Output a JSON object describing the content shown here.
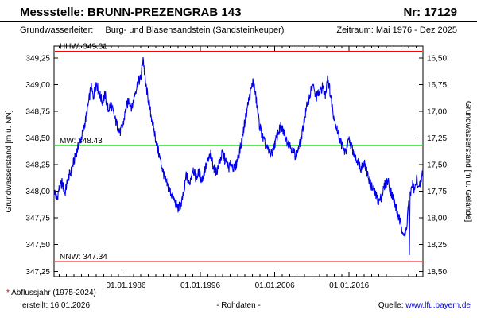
{
  "header": {
    "station_label": "Messstelle:",
    "station_name": "BRUNN-PREZENGRAB 143",
    "number": "Nr: 17129",
    "aquifer_label": "Grundwasserleiter:",
    "aquifer_value": "Burg- und Blasensandstein (Sandsteinkeuper)",
    "period": "Zeitraum: Mai 1976 - Dez 2025"
  },
  "footer": {
    "footnote_marker": "*",
    "footnote": "Abflussjahr (1975-2024)",
    "created": "erstellt: 16.01.2026",
    "center": "- Rohdaten -",
    "source_label": "Quelle:",
    "source_link": "www.lfu.bayern.de"
  },
  "colors": {
    "link": "#0000cc",
    "footnote_marker": "#cc0000",
    "axis": "#000000"
  },
  "chart_data": {
    "type": "line",
    "title": "",
    "ylabel_left": "Grundwasserstand [m ü. NN]",
    "ylabel_right": "Grundwasserstand [m u. Gelände]",
    "x_range": [
      1976.33,
      2025.92
    ],
    "ylim_left": [
      347.2,
      349.36
    ],
    "grid": false,
    "legend": "none",
    "y_ticks": [
      {
        "value": 349.25,
        "left": "349,25",
        "right": "16,50"
      },
      {
        "value": 349.0,
        "left": "349,00",
        "right": "16,75"
      },
      {
        "value": 348.75,
        "left": "348,75",
        "right": "17,00"
      },
      {
        "value": 348.5,
        "left": "348,50",
        "right": "17,25"
      },
      {
        "value": 348.25,
        "left": "348,25",
        "right": "17,50"
      },
      {
        "value": 348.0,
        "left": "348,00",
        "right": "17,75"
      },
      {
        "value": 347.75,
        "left": "347,75",
        "right": "18,00"
      },
      {
        "value": 347.5,
        "left": "347,50",
        "right": "18,25"
      },
      {
        "value": 347.25,
        "left": "347,25",
        "right": "18,50"
      }
    ],
    "x_ticks": [
      {
        "year": 1986,
        "label": "01.01.1986"
      },
      {
        "year": 1996,
        "label": "01.01.1996"
      },
      {
        "year": 2006,
        "label": "01.01.2006"
      },
      {
        "year": 2016,
        "label": "01.01.2016"
      }
    ],
    "reference_lines": [
      {
        "name": "HHW",
        "label": "HHW: 349.31",
        "value": 349.31,
        "color": "#ff0000"
      },
      {
        "name": "MW",
        "label": "MW: 348.43",
        "value": 348.43,
        "color": "#009900"
      },
      {
        "name": "NNW",
        "label": "NNW: 347.34",
        "value": 347.34,
        "color": "#ff0000"
      }
    ],
    "noise_amplitude": 0.05,
    "samples_per_year": 24,
    "series": [
      {
        "name": "Grundwasserstand Rohdaten",
        "color": "#0000ee",
        "points": [
          [
            1976.4,
            348.0
          ],
          [
            1976.7,
            347.92
          ],
          [
            1977.0,
            348.02
          ],
          [
            1977.4,
            348.08
          ],
          [
            1977.8,
            347.98
          ],
          [
            1978.2,
            348.12
          ],
          [
            1978.6,
            348.18
          ],
          [
            1979.0,
            348.28
          ],
          [
            1979.4,
            348.38
          ],
          [
            1979.8,
            348.46
          ],
          [
            1980.2,
            348.55
          ],
          [
            1980.6,
            348.68
          ],
          [
            1981.0,
            348.84
          ],
          [
            1981.3,
            348.98
          ],
          [
            1981.6,
            348.88
          ],
          [
            1982.0,
            349.02
          ],
          [
            1982.4,
            348.92
          ],
          [
            1982.8,
            348.84
          ],
          [
            1983.2,
            348.9
          ],
          [
            1983.6,
            348.76
          ],
          [
            1984.0,
            348.82
          ],
          [
            1984.4,
            348.7
          ],
          [
            1984.8,
            348.62
          ],
          [
            1985.2,
            348.55
          ],
          [
            1985.6,
            348.62
          ],
          [
            1986.0,
            348.78
          ],
          [
            1986.4,
            348.86
          ],
          [
            1986.8,
            348.78
          ],
          [
            1987.2,
            348.92
          ],
          [
            1987.6,
            349.02
          ],
          [
            1988.0,
            349.06
          ],
          [
            1988.3,
            349.26
          ],
          [
            1988.6,
            349.02
          ],
          [
            1989.0,
            348.86
          ],
          [
            1989.4,
            348.7
          ],
          [
            1989.8,
            348.56
          ],
          [
            1990.2,
            348.42
          ],
          [
            1990.6,
            348.3
          ],
          [
            1991.0,
            348.18
          ],
          [
            1991.4,
            348.08
          ],
          [
            1991.8,
            348.02
          ],
          [
            1992.2,
            347.96
          ],
          [
            1992.6,
            347.9
          ],
          [
            1993.0,
            347.84
          ],
          [
            1993.4,
            347.88
          ],
          [
            1993.8,
            347.98
          ],
          [
            1994.1,
            348.16
          ],
          [
            1994.5,
            348.06
          ],
          [
            1995.0,
            348.22
          ],
          [
            1995.4,
            348.12
          ],
          [
            1995.8,
            348.18
          ],
          [
            1996.2,
            348.1
          ],
          [
            1996.6,
            348.2
          ],
          [
            1997.0,
            348.28
          ],
          [
            1997.4,
            348.34
          ],
          [
            1997.8,
            348.22
          ],
          [
            1998.2,
            348.18
          ],
          [
            1998.6,
            348.28
          ],
          [
            1999.0,
            348.36
          ],
          [
            1999.4,
            348.28
          ],
          [
            1999.8,
            348.22
          ],
          [
            2000.2,
            348.26
          ],
          [
            2000.6,
            348.2
          ],
          [
            2001.0,
            348.3
          ],
          [
            2001.5,
            348.44
          ],
          [
            2002.0,
            348.66
          ],
          [
            2002.4,
            348.82
          ],
          [
            2002.8,
            348.94
          ],
          [
            2003.1,
            349.04
          ],
          [
            2003.5,
            348.86
          ],
          [
            2003.9,
            348.64
          ],
          [
            2004.3,
            348.52
          ],
          [
            2004.7,
            348.44
          ],
          [
            2005.1,
            348.38
          ],
          [
            2005.5,
            348.34
          ],
          [
            2006.0,
            348.44
          ],
          [
            2006.4,
            348.54
          ],
          [
            2006.8,
            348.6
          ],
          [
            2007.2,
            348.56
          ],
          [
            2007.6,
            348.48
          ],
          [
            2008.0,
            348.44
          ],
          [
            2008.4,
            348.38
          ],
          [
            2008.8,
            348.34
          ],
          [
            2009.2,
            348.4
          ],
          [
            2009.6,
            348.5
          ],
          [
            2010.0,
            348.68
          ],
          [
            2010.4,
            348.82
          ],
          [
            2010.8,
            348.92
          ],
          [
            2011.1,
            349.0
          ],
          [
            2011.5,
            348.88
          ],
          [
            2012.0,
            348.92
          ],
          [
            2012.4,
            348.98
          ],
          [
            2012.8,
            348.9
          ],
          [
            2013.1,
            349.08
          ],
          [
            2013.5,
            348.9
          ],
          [
            2013.9,
            348.72
          ],
          [
            2014.3,
            348.6
          ],
          [
            2014.7,
            348.5
          ],
          [
            2015.1,
            348.42
          ],
          [
            2015.5,
            348.36
          ],
          [
            2016.0,
            348.48
          ],
          [
            2016.4,
            348.4
          ],
          [
            2016.8,
            348.32
          ],
          [
            2017.2,
            348.28
          ],
          [
            2017.6,
            348.22
          ],
          [
            2018.0,
            348.28
          ],
          [
            2018.4,
            348.18
          ],
          [
            2018.8,
            348.08
          ],
          [
            2019.2,
            348.02
          ],
          [
            2019.6,
            347.96
          ],
          [
            2020.0,
            347.9
          ],
          [
            2020.4,
            347.96
          ],
          [
            2020.8,
            348.06
          ],
          [
            2021.2,
            348.1
          ],
          [
            2021.6,
            348.0
          ],
          [
            2022.0,
            347.92
          ],
          [
            2022.4,
            347.82
          ],
          [
            2022.8,
            347.72
          ],
          [
            2023.2,
            347.64
          ],
          [
            2023.5,
            347.56
          ],
          [
            2023.8,
            347.72
          ],
          [
            2024.0,
            347.92
          ],
          [
            2024.1,
            347.4
          ],
          [
            2024.2,
            347.95
          ],
          [
            2024.5,
            348.08
          ],
          [
            2024.8,
            348.0
          ],
          [
            2025.1,
            348.12
          ],
          [
            2025.4,
            348.02
          ],
          [
            2025.7,
            348.1
          ],
          [
            2025.9,
            348.2
          ]
        ]
      }
    ]
  }
}
